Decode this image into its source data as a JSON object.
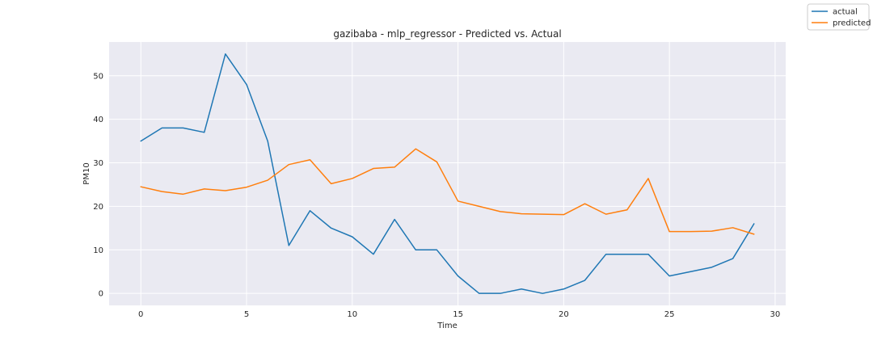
{
  "chart_data": {
    "type": "line",
    "title": "gazibaba - mlp_regressor - Predicted vs. Actual",
    "xlabel": "Time",
    "ylabel": "PM10",
    "xlim": [
      -1.5,
      30.5
    ],
    "ylim": [
      -2.75,
      57.75
    ],
    "xticks": [
      0,
      5,
      10,
      15,
      20,
      25,
      30
    ],
    "yticks": [
      0,
      10,
      20,
      30,
      40,
      50
    ],
    "grid": true,
    "legend_position": "top-right",
    "x": [
      0,
      1,
      2,
      3,
      4,
      5,
      6,
      7,
      8,
      9,
      10,
      11,
      12,
      13,
      14,
      15,
      16,
      17,
      18,
      19,
      20,
      21,
      22,
      23,
      24,
      25,
      26,
      27,
      28,
      29
    ],
    "series": [
      {
        "name": "actual",
        "color": "#1f77b4",
        "values": [
          35,
          38,
          38,
          37,
          55,
          48,
          35,
          11,
          19,
          15,
          13,
          9,
          17,
          10,
          10,
          4,
          0,
          0,
          1,
          0,
          1,
          3,
          9,
          9,
          9,
          4,
          5,
          6,
          8,
          16
        ]
      },
      {
        "name": "predicted",
        "color": "#ff7f0e",
        "values": [
          24.5,
          23.4,
          22.8,
          24.0,
          23.6,
          24.4,
          26.0,
          29.6,
          30.7,
          25.2,
          26.4,
          28.7,
          29.0,
          33.2,
          30.2,
          21.2,
          20.0,
          18.8,
          18.3,
          18.2,
          18.1,
          20.6,
          18.2,
          19.2,
          26.4,
          14.2,
          14.2,
          14.3,
          15.1,
          13.6
        ]
      }
    ],
    "colors": {
      "plot_background": "#eaeaf2",
      "grid": "#ffffff",
      "text": "#262626"
    }
  }
}
